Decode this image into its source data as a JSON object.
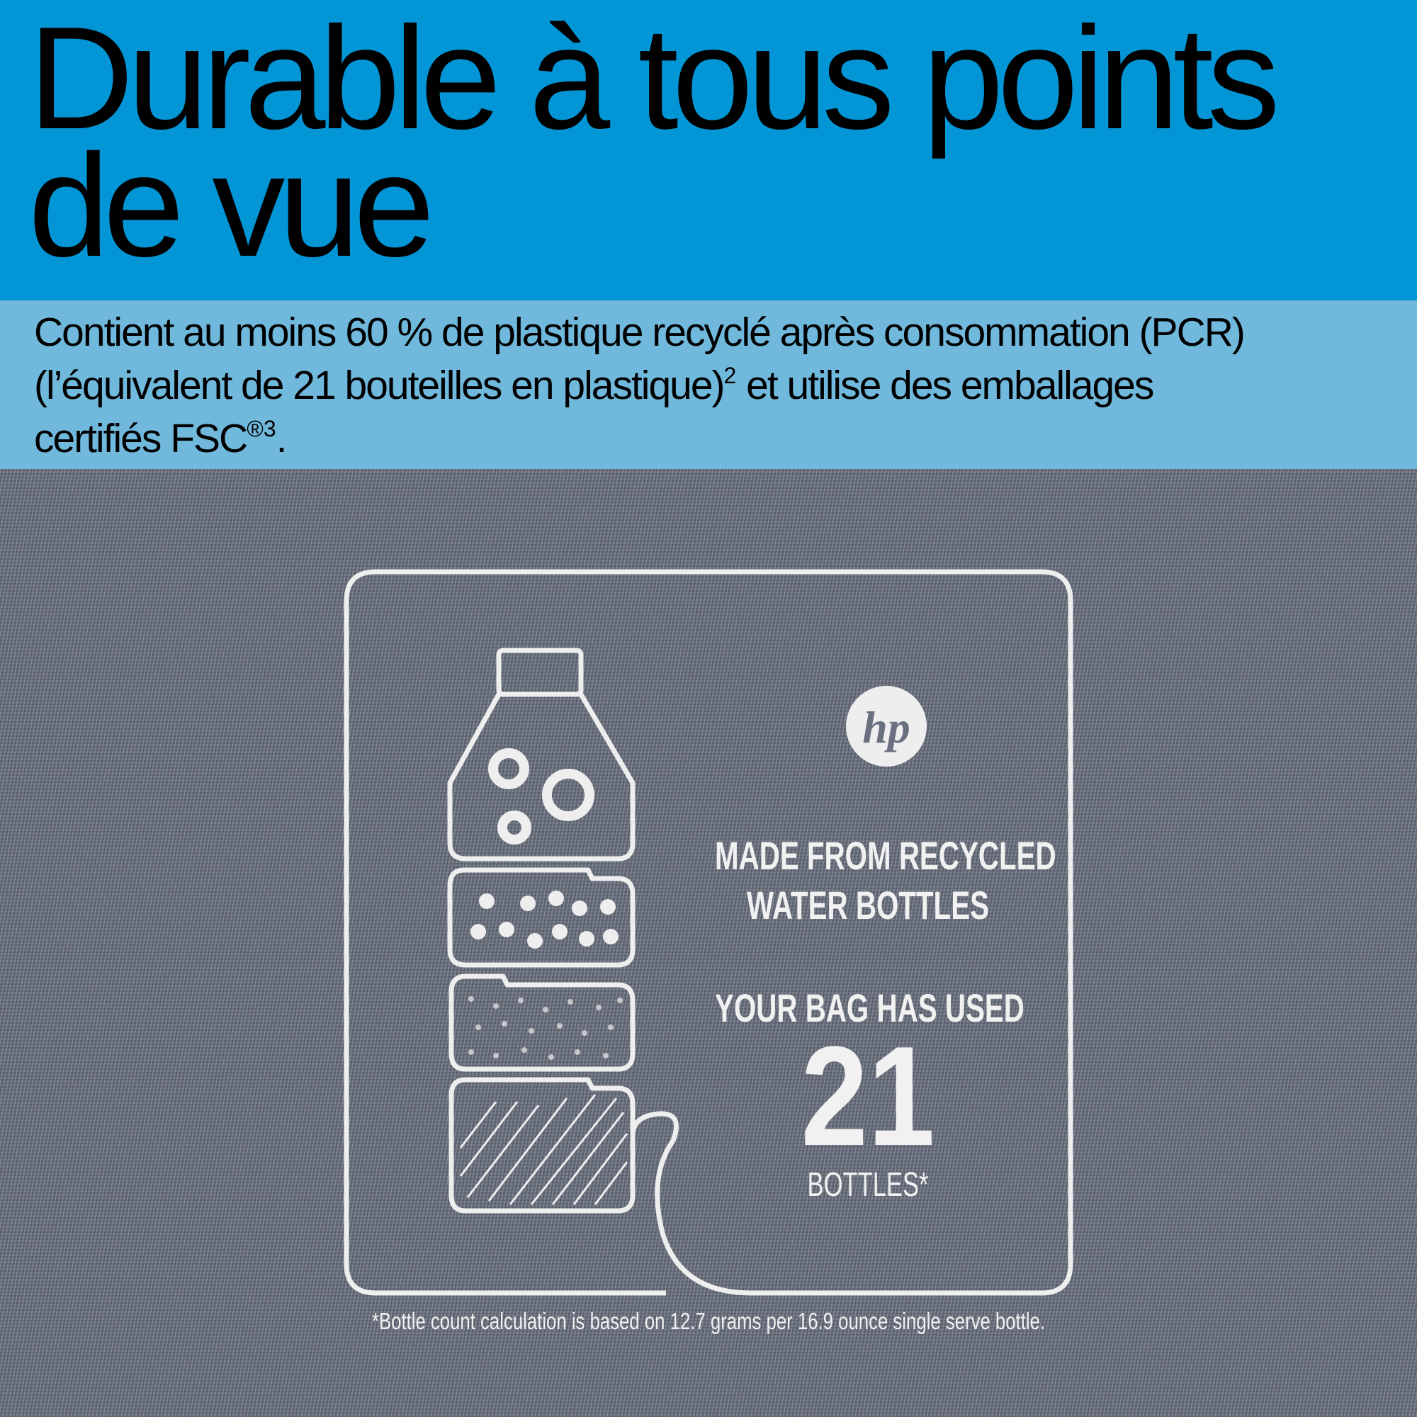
{
  "header": {
    "title_line1": "Durable à tous points",
    "title_line2": "de vue",
    "colors": {
      "primary_band": "#0396d6",
      "secondary_band": "#70b9dc"
    }
  },
  "description": {
    "line1": "Contient au moins 60 % de plastique recyclé après consommation (PCR)",
    "line2_a": "(l’équivalent de 21 bouteilles en plastique)",
    "line2_sup": "2",
    "line2_b": " et utilise des emballages",
    "line3_a": "certifiés FSC",
    "line3_sup": "®3",
    "line3_b": "."
  },
  "label": {
    "logo": "hp",
    "made_from_line1": "MADE FROM RECYCLED",
    "made_from_line2": "WATER BOTTLES",
    "used_text": "YOUR BAG HAS USED",
    "bottle_count": "21",
    "bottles_label": "BOTTLES*",
    "footnote": "*Bottle count calculation is based on 12.7 grams per 16.9 ounce single serve bottle."
  }
}
